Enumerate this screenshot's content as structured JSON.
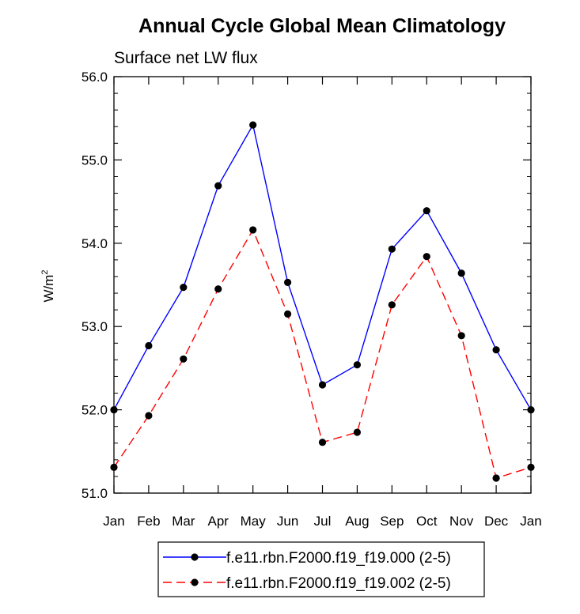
{
  "chart_data": {
    "type": "line",
    "title": "Annual Cycle Global Mean Climatology",
    "subtitle": "Surface net LW flux",
    "ylabel_base": "W/m",
    "ylabel_sup": "2",
    "xlabel": "",
    "categories": [
      "Jan",
      "Feb",
      "Mar",
      "Apr",
      "May",
      "Jun",
      "Jul",
      "Aug",
      "Sep",
      "Oct",
      "Nov",
      "Dec",
      "Jan"
    ],
    "yticks": [
      "51.0",
      "52.0",
      "53.0",
      "54.0",
      "55.0",
      "56.0"
    ],
    "ylim": [
      51.0,
      56.0
    ],
    "grid": false,
    "legend_position": "bottom",
    "series": [
      {
        "name": "f.e11.rbn.F2000.f19_f19.000 (2-5)",
        "color": "#0000ff",
        "dash": "solid",
        "values": [
          52.0,
          52.77,
          53.47,
          54.69,
          55.42,
          53.53,
          52.3,
          52.54,
          53.93,
          54.39,
          53.64,
          52.72,
          52.0
        ]
      },
      {
        "name": "f.e11.rbn.F2000.f19_f19.002 (2-5)",
        "color": "#ff0000",
        "dash": "dashed",
        "values": [
          51.31,
          51.93,
          52.61,
          53.45,
          54.16,
          53.15,
          51.61,
          51.73,
          53.26,
          53.84,
          52.89,
          51.18,
          51.31
        ]
      }
    ]
  }
}
